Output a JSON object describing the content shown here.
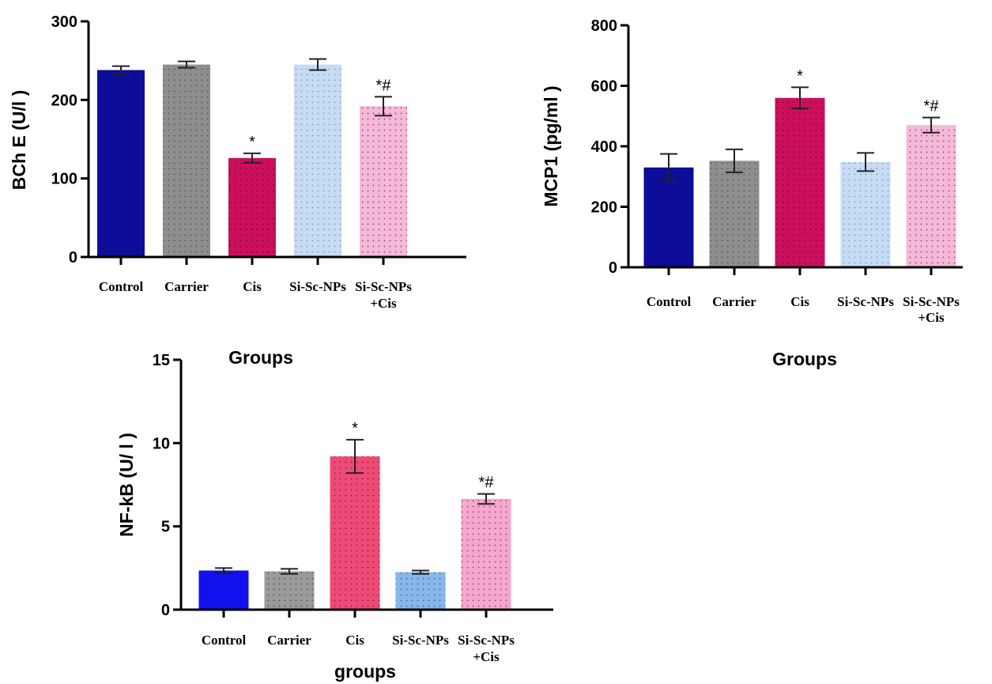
{
  "chart_data": [
    {
      "type": "bar",
      "ylabel": "BCh E (U/l )",
      "xlabel": "Groups",
      "ylim": [
        0,
        300
      ],
      "yticks": [
        "0",
        "100",
        "200",
        "300"
      ],
      "categories": [
        [
          "Control"
        ],
        [
          "Carrier"
        ],
        [
          "Cis"
        ],
        [
          "Si-Sc-NPs"
        ],
        [
          "Si-Sc-NPs",
          "+Cis"
        ]
      ],
      "values": [
        238,
        245,
        126,
        245,
        192
      ],
      "errors": [
        5,
        4,
        6,
        7,
        12
      ],
      "significance": [
        "",
        "",
        "*",
        "",
        "*#"
      ],
      "colors": [
        "#0d0d9a",
        "#8e8e8e",
        "#cc0f5c",
        "#c6dcf5",
        "#f5b8d9"
      ],
      "dot_colors": [
        "#0d0d9a",
        "#555555",
        "#7a0634",
        "#7f9bbd",
        "#8a4a66"
      ]
    },
    {
      "type": "bar",
      "ylabel": "MCP1 (pg/ml )",
      "xlabel": "Groups",
      "ylim": [
        0,
        800
      ],
      "yticks": [
        "0",
        "200",
        "400",
        "600",
        "800"
      ],
      "categories": [
        [
          "Control"
        ],
        [
          "Carrier"
        ],
        [
          "Cis"
        ],
        [
          "Si-Sc-NPs"
        ],
        [
          "Si-Sc-NPs",
          "+Cis"
        ]
      ],
      "values": [
        330,
        352,
        560,
        348,
        470
      ],
      "errors": [
        45,
        38,
        35,
        30,
        25
      ],
      "significance": [
        "",
        "",
        "*",
        "",
        "*#"
      ],
      "colors": [
        "#0d0d9a",
        "#8e8e8e",
        "#cc0f5c",
        "#c6dcf5",
        "#f5b8d9"
      ],
      "dot_colors": [
        "#0d0d9a",
        "#555555",
        "#7a0634",
        "#7f9bbd",
        "#8a4a66"
      ]
    },
    {
      "type": "bar",
      "ylabel": "NF-kB (U/ l )",
      "xlabel": "groups",
      "ylim": [
        0,
        15
      ],
      "yticks": [
        "0",
        "5",
        "10",
        "15"
      ],
      "categories": [
        [
          "Control"
        ],
        [
          "Carrier"
        ],
        [
          "Cis"
        ],
        [
          "Si-Sc-NPs"
        ],
        [
          "Si-Sc-NPs",
          "+Cis"
        ]
      ],
      "values": [
        2.35,
        2.3,
        9.2,
        2.25,
        6.65
      ],
      "errors": [
        0.15,
        0.15,
        1.0,
        0.1,
        0.3
      ],
      "significance": [
        "",
        "",
        "*",
        "",
        "*#"
      ],
      "colors": [
        "#1111ee",
        "#9a9a9a",
        "#ee4a78",
        "#86b6ec",
        "#f7a6cf"
      ],
      "dot_colors": [
        "#1111ee",
        "#555555",
        "#8f1f3f",
        "#43678f",
        "#8a4a66"
      ]
    }
  ]
}
